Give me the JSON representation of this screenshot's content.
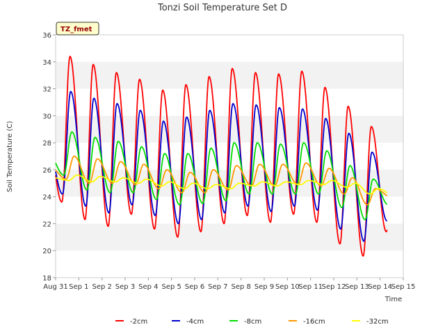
{
  "chart_data": {
    "type": "line",
    "title": "Tonzi Soil Temperature Set D",
    "xlabel": "Time",
    "ylabel": "Soil Temperature (C)",
    "site_label": "TZ_fmet",
    "x_ticks": [
      "Aug 31",
      "Sep 1",
      "Sep 2",
      "Sep 3",
      "Sep 4",
      "Sep 5",
      "Sep 6",
      "Sep 7",
      "Sep 8",
      "Sep 9",
      "Sep 10",
      "Sep 11",
      "Sep 12",
      "Sep 13",
      "Sep 14",
      "Sep 15"
    ],
    "xlim": [
      0,
      15
    ],
    "ylim": [
      18,
      36
    ],
    "y_ticks": [
      18,
      20,
      22,
      24,
      26,
      28,
      30,
      32,
      34,
      36
    ],
    "grid": "alternating horizontal bands",
    "legend_position": "bottom",
    "colors": {
      "plot_band": "#f2f2f2",
      "site_label_bg": "#ffffcc",
      "site_label_text": "#990000"
    },
    "series": [
      {
        "name": "-2cm",
        "color": "#ff0000",
        "daily_min": [
          23.6,
          22.3,
          21.8,
          22.7,
          21.6,
          21.0,
          21.4,
          22.0,
          22.6,
          22.1,
          22.7,
          22.1,
          20.5,
          19.6,
          21.4
        ],
        "daily_max": [
          34.4,
          33.8,
          33.2,
          32.7,
          31.9,
          32.3,
          32.9,
          33.5,
          33.2,
          33.1,
          33.3,
          32.1,
          30.7,
          29.2
        ]
      },
      {
        "name": "-4cm",
        "color": "#0000cc",
        "daily_min": [
          24.2,
          23.3,
          22.8,
          23.4,
          22.6,
          22.0,
          22.3,
          22.8,
          23.3,
          22.9,
          23.3,
          23.0,
          21.6,
          20.7,
          22.2
        ],
        "daily_max": [
          31.8,
          31.3,
          30.9,
          30.4,
          29.6,
          29.9,
          30.4,
          30.9,
          30.8,
          30.6,
          30.5,
          29.8,
          28.7,
          27.3
        ]
      },
      {
        "name": "-8cm",
        "color": "#00dd00",
        "daily_min": [
          25.6,
          24.5,
          24.3,
          24.3,
          23.8,
          23.4,
          23.5,
          23.7,
          24.2,
          24.2,
          24.2,
          24.2,
          23.2,
          22.3,
          23.4
        ],
        "daily_max": [
          28.8,
          28.4,
          28.1,
          27.7,
          27.2,
          27.2,
          27.6,
          28.0,
          28.0,
          27.9,
          28.0,
          27.4,
          26.3,
          25.3
        ]
      },
      {
        "name": "-16cm",
        "color": "#ff9900",
        "daily_min": [
          25.3,
          25.0,
          25.0,
          24.9,
          24.6,
          24.3,
          24.3,
          24.5,
          24.8,
          24.8,
          24.9,
          24.8,
          24.2,
          23.4,
          24.0
        ],
        "daily_max": [
          27.0,
          26.8,
          26.6,
          26.4,
          26.0,
          25.8,
          26.0,
          26.3,
          26.4,
          26.4,
          26.5,
          26.1,
          25.4,
          24.6
        ]
      },
      {
        "name": "-32cm",
        "color": "#ffff00",
        "daily_min": [
          25.2,
          25.1,
          25.1,
          25.0,
          24.8,
          24.6,
          24.6,
          24.6,
          24.8,
          24.8,
          24.9,
          24.9,
          24.7,
          24.2,
          24.1
        ],
        "daily_max": [
          25.6,
          25.5,
          25.4,
          25.3,
          25.1,
          25.0,
          24.9,
          25.0,
          25.1,
          25.1,
          25.2,
          25.2,
          25.0,
          24.6
        ]
      }
    ]
  }
}
